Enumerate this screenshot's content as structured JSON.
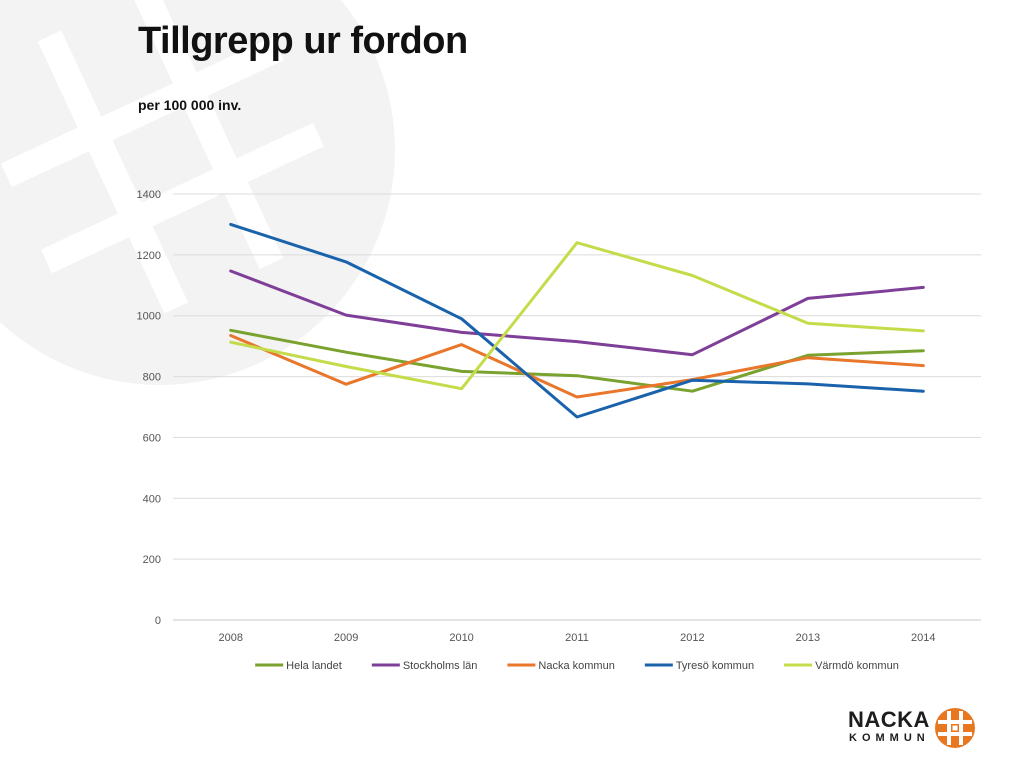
{
  "slide": {
    "title": "Tillgrepp ur fordon",
    "subtitle": "per 100 000 inv."
  },
  "logo": {
    "word_top": "NACKA",
    "word_bottom": "KOMMUN",
    "emblem_icon": "nacka-cross-emblem-icon",
    "watermark_icon": "nacka-emblem-watermark-icon",
    "accent_color": "#e87722"
  },
  "chart_data": {
    "type": "line",
    "title": "",
    "xlabel": "",
    "ylabel": "",
    "x": [
      "2008",
      "2009",
      "2010",
      "2011",
      "2012",
      "2013",
      "2014"
    ],
    "ylim": [
      0,
      1400
    ],
    "yticks": [
      0,
      200,
      400,
      600,
      800,
      1000,
      1200,
      1400
    ],
    "grid": "horizontal",
    "legend_position": "bottom",
    "series": [
      {
        "name": "Hela landet",
        "color": "#7aa22e",
        "values": [
          952,
          880,
          817,
          803,
          752,
          870,
          885
        ]
      },
      {
        "name": "Stockholms län",
        "color": "#7f3f98",
        "values": [
          1147,
          1002,
          945,
          915,
          872,
          1057,
          1093
        ]
      },
      {
        "name": "Nacka kommun",
        "color": "#e8762b",
        "values": [
          935,
          775,
          905,
          733,
          790,
          862,
          836
        ]
      },
      {
        "name": "Tyresö kommun",
        "color": "#1a63ac",
        "values": [
          1300,
          1177,
          990,
          667,
          788,
          776,
          752
        ]
      },
      {
        "name": "Värmdö kommun",
        "color": "#c4dc4a",
        "values": [
          913,
          833,
          760,
          1240,
          1132,
          975,
          950
        ]
      }
    ]
  }
}
